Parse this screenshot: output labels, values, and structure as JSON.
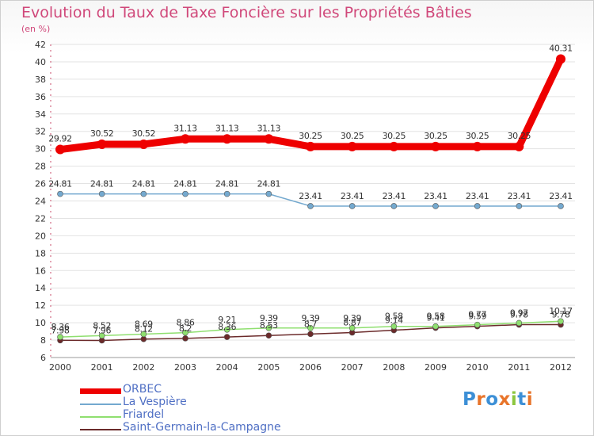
{
  "chart_data": {
    "type": "line",
    "title": "Evolution du Taux de Taxe Foncière sur les Propriétés Bâties",
    "ylabel": "(en %)",
    "xlabel": "",
    "categories": [
      "2000",
      "2001",
      "2002",
      "2003",
      "2004",
      "2005",
      "2006",
      "2007",
      "2008",
      "2009",
      "2010",
      "2011",
      "2012"
    ],
    "ylim": [
      6,
      42
    ],
    "yticks": [
      6,
      8,
      10,
      12,
      14,
      16,
      18,
      20,
      22,
      24,
      26,
      28,
      30,
      32,
      34,
      36,
      38,
      40,
      42
    ],
    "series": [
      {
        "name": "ORBEC",
        "color": "#ee0000",
        "values": [
          29.92,
          30.52,
          30.52,
          31.13,
          31.13,
          31.13,
          30.25,
          30.25,
          30.25,
          30.25,
          30.25,
          30.25,
          40.31
        ],
        "labels": [
          "29.92",
          "30.52",
          "30.52",
          "31.13",
          "31.13",
          "31.13",
          "30.25",
          "30.25",
          "30.25",
          "30.25",
          "30.25",
          "30.25",
          "40.31"
        ]
      },
      {
        "name": "La Vespière",
        "color": "#74a9cf",
        "values": [
          24.81,
          24.81,
          24.81,
          24.81,
          24.81,
          24.81,
          23.41,
          23.41,
          23.41,
          23.41,
          23.41,
          23.41,
          23.41
        ],
        "labels": [
          "24.81",
          "24.81",
          "24.81",
          "24.81",
          "24.81",
          "24.81",
          "23.41",
          "23.41",
          "23.41",
          "23.41",
          "23.41",
          "23.41",
          "23.41"
        ]
      },
      {
        "name": "Friardel",
        "color": "#8fdf6f",
        "values": [
          8.36,
          8.52,
          8.69,
          8.86,
          9.21,
          9.39,
          9.39,
          9.39,
          9.58,
          9.58,
          9.77,
          9.97,
          10.17
        ],
        "labels": [
          "8.36",
          "8.52",
          "8.69",
          "8.86",
          "9.21",
          "9.39",
          "9.39",
          "9.39",
          "9.58",
          "9.58",
          "9.77",
          "9.97",
          "10.17"
        ]
      },
      {
        "name": "Saint-Germain-la-Campagne",
        "color": "#6b2a2a",
        "values": [
          7.98,
          7.96,
          8.12,
          8.2,
          8.36,
          8.53,
          8.7,
          8.87,
          9.14,
          9.41,
          9.59,
          9.78,
          9.78
        ],
        "labels": [
          "7.98",
          "7.96",
          "8.12",
          "8.2",
          "8.36",
          "8.53",
          "8.7",
          "8.87",
          "9.14",
          "9.41",
          "9.59",
          "9.78",
          "9.78"
        ]
      }
    ],
    "legend_position": "bottom-left",
    "grid": true
  },
  "branding": {
    "text": "Proxiti"
  }
}
